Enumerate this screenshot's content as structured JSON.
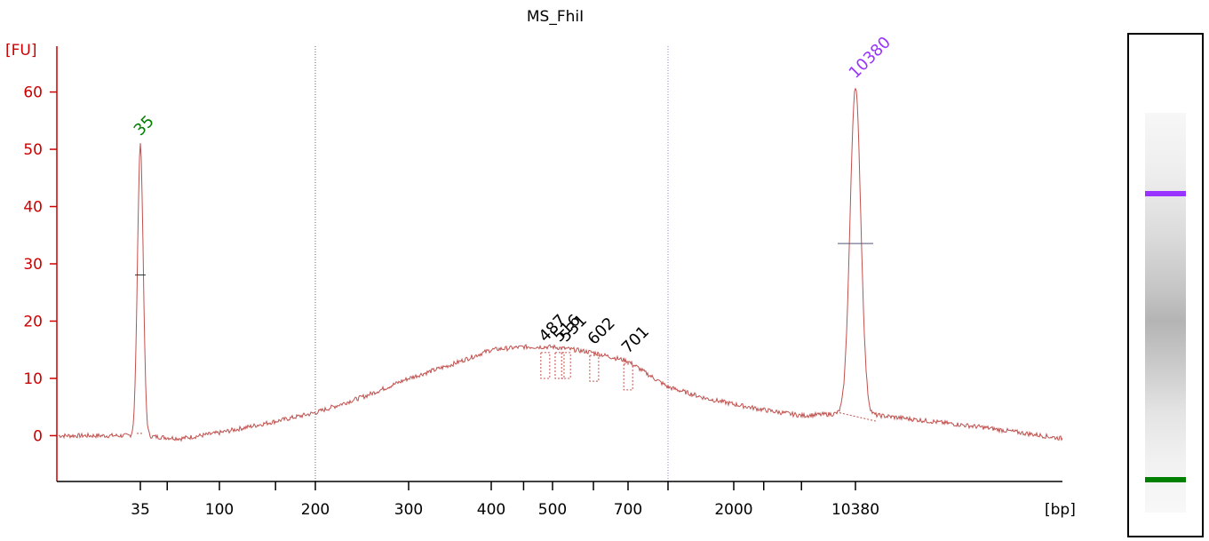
{
  "chart_data": {
    "type": "line",
    "title": "MS_FhiI",
    "ylabel": "[FU]",
    "xlabel": "[bp]",
    "ylim": [
      -8,
      68
    ],
    "yticks": [
      0,
      10,
      20,
      30,
      40,
      50,
      60
    ],
    "x_tick_labels": [
      "35",
      "100",
      "200",
      "300",
      "400",
      "500",
      "700",
      "2000",
      "10380"
    ],
    "marker_lines": [
      "200",
      "1000"
    ],
    "peaks": [
      {
        "label": "35",
        "x": "35",
        "height": 51,
        "color": "#008000"
      },
      {
        "label": "487",
        "x": "487",
        "height": 15,
        "color": "#000000"
      },
      {
        "label": "516",
        "x": "516",
        "height": 15,
        "color": "#000000"
      },
      {
        "label": "531",
        "x": "531",
        "height": 15,
        "color": "#000000"
      },
      {
        "label": "602",
        "x": "602",
        "height": 14.5,
        "color": "#000000"
      },
      {
        "label": "701",
        "x": "701",
        "height": 13,
        "color": "#000000"
      },
      {
        "label": "10380",
        "x": "10380",
        "height": 61,
        "color": "#9933ff"
      }
    ],
    "colors": {
      "trace": "#c0504d",
      "axis": "#cc0000",
      "ladder_low": "#008000",
      "ladder_high": "#9933ff"
    },
    "smear_profile": [
      {
        "x": "35",
        "y": 0
      },
      {
        "x": "60",
        "y": -0.5
      },
      {
        "x": "100",
        "y": 0.5
      },
      {
        "x": "150",
        "y": 2.5
      },
      {
        "x": "200",
        "y": 4
      },
      {
        "x": "250",
        "y": 7
      },
      {
        "x": "300",
        "y": 10
      },
      {
        "x": "350",
        "y": 12.5
      },
      {
        "x": "400",
        "y": 15
      },
      {
        "x": "450",
        "y": 15.5
      },
      {
        "x": "500",
        "y": 15.5
      },
      {
        "x": "550",
        "y": 15
      },
      {
        "x": "600",
        "y": 14.5
      },
      {
        "x": "700",
        "y": 13
      },
      {
        "x": "850",
        "y": 10.5
      },
      {
        "x": "1000",
        "y": 8.5
      },
      {
        "x": "1500",
        "y": 6.5
      },
      {
        "x": "2000",
        "y": 5.5
      },
      {
        "x": "3000",
        "y": 4.5
      },
      {
        "x": "5000",
        "y": 3.5
      },
      {
        "x": "10380",
        "y": 4
      },
      {
        "x": "14000",
        "y": 1.5
      },
      {
        "x": "17000",
        "y": -0.5
      }
    ]
  }
}
